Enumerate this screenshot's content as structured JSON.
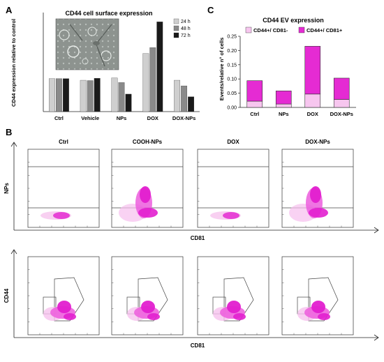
{
  "panels": {
    "a": "A",
    "b": "B",
    "c": "C"
  },
  "chart_data": [
    {
      "type": "bar",
      "title": "CD44 cell surface expression",
      "ylabel": "CD44 expression relative to control",
      "xlabel": "",
      "categories": [
        "Ctrl",
        "Vehicle",
        "NPs",
        "DOX",
        "DOX-NPs"
      ],
      "ylim": [
        0,
        300
      ],
      "grid": false,
      "legend_position": "top-right",
      "series": [
        {
          "name": "24 h",
          "color": "#cfcfcf",
          "values": [
            100,
            95,
            102,
            176,
            95
          ]
        },
        {
          "name": "48 h",
          "color": "#8a8a8a",
          "values": [
            100,
            94,
            88,
            194,
            78
          ]
        },
        {
          "name": "72 h",
          "color": "#1a1a1a",
          "values": [
            100,
            101,
            53,
            272,
            45
          ]
        }
      ],
      "inset": "phase-contrast micrograph"
    },
    {
      "type": "bar",
      "stacked": true,
      "title": "CD44 EV expression",
      "ylabel": "Events/relative n° of cells",
      "xlabel": "",
      "categories": [
        "Ctrl",
        "NPs",
        "DOX",
        "DOX-NPs"
      ],
      "ylim": [
        0,
        0.25
      ],
      "yticks": [
        "0.00",
        "0.05",
        "0.10",
        "0.15",
        "0.20",
        "0.25"
      ],
      "legend_position": "top",
      "series": [
        {
          "name": "CD44+/ CD81-",
          "color": "#f7c6ef",
          "values": [
            0.022,
            0.012,
            0.047,
            0.028
          ]
        },
        {
          "name": "CD44+/ CD81+",
          "color": "#e52bd3",
          "values": [
            0.072,
            0.046,
            0.168,
            0.075
          ]
        }
      ]
    },
    {
      "type": "scatter",
      "subtype": "flow-cytometry-density",
      "columns": [
        "Ctrl",
        "COOH-NPs",
        "DOX",
        "DOX-NPs"
      ],
      "rows": [
        {
          "ylabel": "NPs",
          "xlabel": "CD81"
        },
        {
          "ylabel": "CD44",
          "xlabel": "CD81"
        }
      ]
    }
  ]
}
